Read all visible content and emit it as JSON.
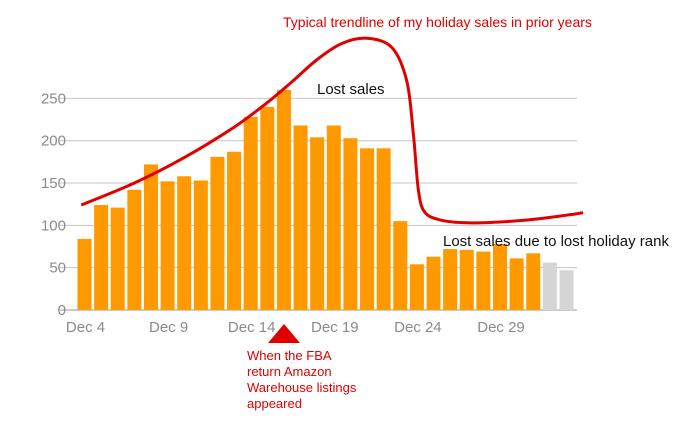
{
  "chart_data": {
    "type": "bar",
    "title": "",
    "xlabel": "",
    "ylabel": "",
    "ylim": [
      0,
      270
    ],
    "yticks": [
      0,
      50,
      100,
      150,
      200,
      250
    ],
    "grid": true,
    "categories": [
      "Dec 4",
      "Dec 5",
      "Dec 6",
      "Dec 7",
      "Dec 8",
      "Dec 9",
      "Dec 10",
      "Dec 11",
      "Dec 12",
      "Dec 13",
      "Dec 14",
      "Dec 15",
      "Dec 16",
      "Dec 17",
      "Dec 18",
      "Dec 19",
      "Dec 20",
      "Dec 21",
      "Dec 22",
      "Dec 23",
      "Dec 24",
      "Dec 25",
      "Dec 26",
      "Dec 27",
      "Dec 28",
      "Dec 29",
      "Dec 30",
      "Dec 31",
      "Jan 1",
      "Jan 2"
    ],
    "x_tick_labels": [
      "Dec 4",
      "Dec 9",
      "Dec 14",
      "Dec 19",
      "Dec 24",
      "Dec 29"
    ],
    "x_tick_indices": [
      0,
      5,
      10,
      15,
      20,
      25
    ],
    "values": [
      84,
      124,
      121,
      142,
      172,
      152,
      158,
      153,
      181,
      187,
      228,
      240,
      260,
      218,
      204,
      218,
      203,
      191,
      191,
      105,
      54,
      63,
      72,
      71,
      69,
      78,
      61,
      67,
      56,
      47
    ],
    "bar_colors": {
      "actual": "#FF9900",
      "projected": "#D5D5D5"
    },
    "projected_from_index": 28,
    "trendline": {
      "color": "#E00000",
      "points": [
        [
          -0.2,
          124
        ],
        [
          3,
          150
        ],
        [
          6,
          180
        ],
        [
          9,
          216
        ],
        [
          11,
          245
        ],
        [
          12.5,
          270
        ],
        [
          14,
          296
        ],
        [
          15.5,
          315
        ],
        [
          17,
          321
        ],
        [
          18.5,
          310
        ],
        [
          19.4,
          270
        ],
        [
          19.8,
          205
        ],
        [
          20.1,
          140
        ],
        [
          20.5,
          115
        ],
        [
          21.5,
          106
        ],
        [
          23,
          103
        ],
        [
          25,
          104
        ],
        [
          27,
          107
        ],
        [
          29,
          112
        ],
        [
          30,
          115
        ]
      ]
    }
  },
  "annotations": {
    "trend_label": "Typical trendline of my holiday sales in prior years",
    "lost_sales_label": "Lost sales",
    "lost_rank_label": "Lost sales due to lost holiday rank",
    "fba_label_lines": [
      "When the FBA",
      "return Amazon",
      "Warehouse listings",
      "appeared"
    ],
    "marker_color": "#E00000"
  }
}
